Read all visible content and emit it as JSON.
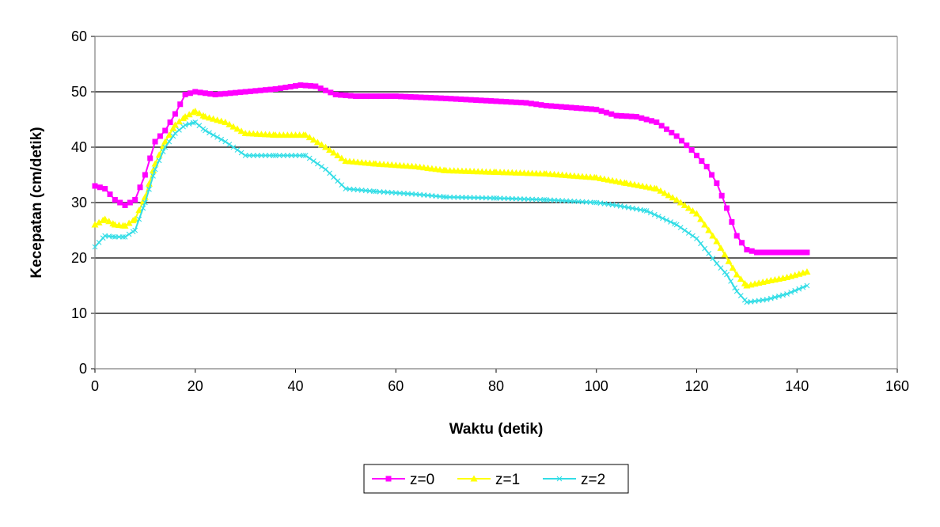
{
  "chart_data": {
    "type": "line",
    "title": "",
    "xlabel": "Waktu (detik)",
    "ylabel": "Kecepatan (cm/detik)",
    "xlim": [
      0,
      160
    ],
    "ylim": [
      0,
      60
    ],
    "x_ticks": [
      0,
      20,
      40,
      60,
      80,
      100,
      120,
      140,
      160
    ],
    "y_ticks": [
      0,
      10,
      20,
      30,
      40,
      50,
      60
    ],
    "grid": "horizontal major gridlines",
    "legend_position": "bottom",
    "series": [
      {
        "name": "z=0",
        "color": "#ff00ff",
        "marker": "square",
        "points": [
          [
            0,
            33
          ],
          [
            2,
            32.5
          ],
          [
            4,
            30.5
          ],
          [
            6,
            29.5
          ],
          [
            8,
            30.5
          ],
          [
            10,
            35
          ],
          [
            12,
            41
          ],
          [
            14,
            43
          ],
          [
            16,
            46
          ],
          [
            18,
            49.5
          ],
          [
            20,
            50
          ],
          [
            24,
            49.5
          ],
          [
            30,
            50
          ],
          [
            36,
            50.5
          ],
          [
            41,
            51.2
          ],
          [
            44,
            51
          ],
          [
            48,
            49.5
          ],
          [
            52,
            49.2
          ],
          [
            60,
            49.2
          ],
          [
            70,
            48.8
          ],
          [
            80,
            48.3
          ],
          [
            86,
            48
          ],
          [
            90,
            47.5
          ],
          [
            100,
            46.8
          ],
          [
            104,
            45.7
          ],
          [
            108,
            45.5
          ],
          [
            112,
            44.5
          ],
          [
            116,
            42
          ],
          [
            119,
            39.5
          ],
          [
            122,
            36.5
          ],
          [
            124,
            33.5
          ],
          [
            126,
            29
          ],
          [
            128,
            24
          ],
          [
            130,
            21.5
          ],
          [
            132,
            21
          ],
          [
            142,
            21
          ]
        ]
      },
      {
        "name": "z=1",
        "color": "#ffff00",
        "marker": "triangle",
        "points": [
          [
            0,
            26
          ],
          [
            2,
            27
          ],
          [
            4,
            26
          ],
          [
            6,
            25.8
          ],
          [
            8,
            27
          ],
          [
            10,
            31
          ],
          [
            12,
            37
          ],
          [
            14,
            41
          ],
          [
            16,
            44
          ],
          [
            18,
            45.5
          ],
          [
            20,
            46.5
          ],
          [
            22,
            45.5
          ],
          [
            26,
            44.5
          ],
          [
            30,
            42.5
          ],
          [
            36,
            42.2
          ],
          [
            42,
            42.2
          ],
          [
            46,
            40
          ],
          [
            50,
            37.5
          ],
          [
            56,
            37
          ],
          [
            64,
            36.5
          ],
          [
            70,
            35.8
          ],
          [
            80,
            35.5
          ],
          [
            90,
            35.2
          ],
          [
            100,
            34.5
          ],
          [
            106,
            33.5
          ],
          [
            112,
            32.5
          ],
          [
            116,
            30.5
          ],
          [
            120,
            28
          ],
          [
            124,
            23
          ],
          [
            128,
            17
          ],
          [
            130,
            15
          ],
          [
            134,
            15.8
          ],
          [
            138,
            16.5
          ],
          [
            142,
            17.5
          ]
        ]
      },
      {
        "name": "z=2",
        "color": "#33dde6",
        "marker": "x",
        "points": [
          [
            0,
            22
          ],
          [
            2,
            24
          ],
          [
            4,
            23.8
          ],
          [
            6,
            23.8
          ],
          [
            8,
            25
          ],
          [
            10,
            30
          ],
          [
            12,
            36
          ],
          [
            14,
            40
          ],
          [
            16,
            42.5
          ],
          [
            18,
            44
          ],
          [
            20,
            44.5
          ],
          [
            22,
            43
          ],
          [
            26,
            41
          ],
          [
            30,
            38.5
          ],
          [
            36,
            38.5
          ],
          [
            42,
            38.5
          ],
          [
            46,
            36
          ],
          [
            50,
            32.5
          ],
          [
            56,
            32
          ],
          [
            64,
            31.5
          ],
          [
            70,
            31
          ],
          [
            80,
            30.8
          ],
          [
            90,
            30.5
          ],
          [
            100,
            30
          ],
          [
            104,
            29.5
          ],
          [
            110,
            28.5
          ],
          [
            116,
            26
          ],
          [
            120,
            23.5
          ],
          [
            124,
            19
          ],
          [
            126,
            17
          ],
          [
            128,
            14
          ],
          [
            130,
            12
          ],
          [
            134,
            12.5
          ],
          [
            138,
            13.5
          ],
          [
            142,
            15
          ]
        ]
      }
    ]
  }
}
